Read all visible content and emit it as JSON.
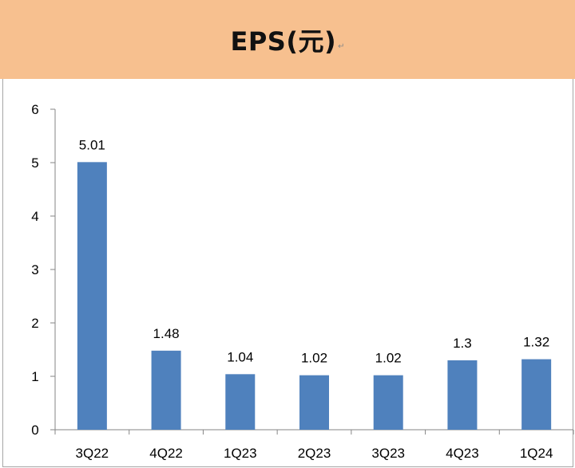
{
  "header": {
    "title": "EPS(元)",
    "mark": "↵"
  },
  "chart_data": {
    "type": "bar",
    "title": "EPS(元)",
    "categories": [
      "3Q22",
      "4Q22",
      "1Q23",
      "2Q23",
      "3Q23",
      "4Q23",
      "1Q24"
    ],
    "series": [
      {
        "name": "EPS",
        "values": [
          5.01,
          1.48,
          1.04,
          1.02,
          1.02,
          1.3,
          1.32
        ]
      }
    ],
    "data_labels": [
      "5.01",
      "1.48",
      "1.04",
      "1.02",
      "1.02",
      "1.3",
      "1.32"
    ],
    "y_ticks": [
      "0",
      "1",
      "2",
      "3",
      "4",
      "5",
      "6"
    ],
    "ylim": [
      0,
      6
    ],
    "xlabel": "",
    "ylabel": "",
    "grid": false,
    "legend": "none",
    "bar_color": "#4f81bd"
  }
}
